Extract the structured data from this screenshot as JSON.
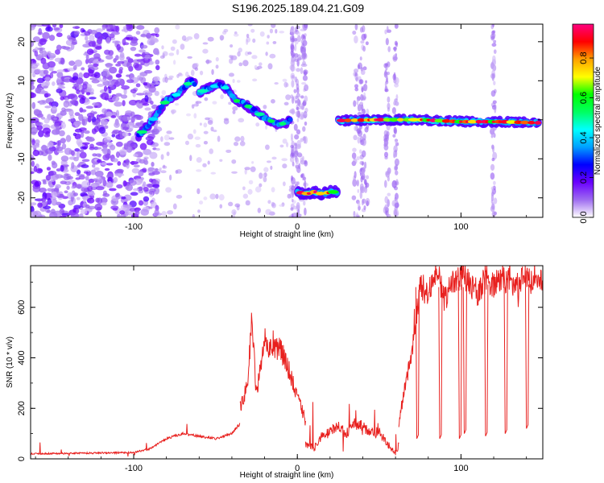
{
  "title": "S196.2025.189.04.21.G09",
  "chart_data": [
    {
      "type": "heatmap",
      "xlabel": "Height of straight line (km)",
      "ylabel": "Frequency (Hz)",
      "xlim": [
        -163,
        150
      ],
      "ylim": [
        -25,
        24.5
      ],
      "xticks": [
        -100,
        0,
        100
      ],
      "yticks": [
        -20,
        -10,
        0,
        10,
        20
      ],
      "colorbar": {
        "label": "Normalized spectral amplitude",
        "range": [
          0,
          0.97
        ],
        "ticks": [
          0.0,
          0.2,
          0.4,
          0.6,
          0.8
        ],
        "colors": [
          "#ffffff",
          "#9e6cf0",
          "#6a00ff",
          "#0000ff",
          "#00a0ff",
          "#00ffff",
          "#00ff60",
          "#00ff00",
          "#ffff00",
          "#ffa000",
          "#ff0000",
          "#ff0080"
        ]
      },
      "features": [
        {
          "name": "rising track",
          "points": [
            [
              -97,
              -4
            ],
            [
              -90,
              -1
            ],
            [
              -85,
              2
            ],
            [
              -80,
              5
            ],
            [
              -75,
              6
            ],
            [
              -70,
              8
            ],
            [
              -65,
              10
            ],
            [
              -62,
              9
            ]
          ]
        },
        {
          "name": "descending track",
          "points": [
            [
              -60,
              7
            ],
            [
              -55,
              8
            ],
            [
              -48,
              9
            ],
            [
              -43,
              8
            ],
            [
              -38,
              5
            ],
            [
              -32,
              4
            ],
            [
              -25,
              2
            ],
            [
              -18,
              0
            ],
            [
              -12,
              -1
            ],
            [
              -8,
              -1
            ],
            [
              -4,
              0
            ]
          ]
        },
        {
          "name": "offset segment",
          "points": [
            [
              0,
              -18.5
            ],
            [
              5,
              -19
            ],
            [
              10,
              -18.5
            ],
            [
              15,
              -19
            ],
            [
              20,
              -18.5
            ],
            [
              25,
              -18.5
            ]
          ]
        },
        {
          "name": "flat track",
          "points": [
            [
              25,
              -0.2
            ],
            [
              50,
              0
            ],
            [
              75,
              0
            ],
            [
              100,
              -0.5
            ],
            [
              125,
              -0.5
            ],
            [
              148,
              -0.8
            ]
          ]
        }
      ]
    },
    {
      "type": "line",
      "xlabel": "Height of straight line (km)",
      "ylabel": "SNR (10 * v/v)",
      "xlim": [
        -163,
        150
      ],
      "ylim": [
        0,
        765
      ],
      "xticks": [
        -100,
        0,
        100
      ],
      "yticks": [
        0,
        200,
        400,
        600
      ],
      "color": "#e8201e",
      "segments": [
        {
          "x": [
            -163,
            -100,
            -90,
            -80,
            -70,
            -60,
            -50,
            -40,
            -35
          ],
          "y": [
            20,
            25,
            40,
            80,
            100,
            90,
            80,
            100,
            140
          ]
        },
        {
          "x": [
            -35,
            -30,
            -28,
            -25,
            -20,
            -15,
            -10,
            -5,
            0,
            5
          ],
          "y": [
            200,
            300,
            580,
            250,
            470,
            420,
            440,
            350,
            250,
            150
          ]
        },
        {
          "x": [
            5,
            10,
            15,
            20,
            25,
            30,
            35,
            40,
            45,
            50,
            55,
            60,
            62
          ],
          "y": [
            60,
            40,
            90,
            110,
            130,
            100,
            140,
            130,
            100,
            110,
            60,
            20,
            60
          ]
        },
        {
          "x": [
            62,
            65,
            70,
            72,
            75,
            80,
            85,
            90,
            95,
            100,
            105,
            110,
            115,
            120,
            125,
            130,
            135,
            140,
            145,
            150
          ],
          "y": [
            140,
            260,
            420,
            520,
            680,
            650,
            750,
            630,
            700,
            720,
            700,
            630,
            720,
            690,
            720,
            700,
            700,
            720,
            690,
            700
          ]
        }
      ],
      "dips": [
        {
          "x": 73,
          "y": 80
        },
        {
          "x": 87,
          "y": 80
        },
        {
          "x": 99,
          "y": 80
        },
        {
          "x": 102,
          "y": 100
        },
        {
          "x": 115,
          "y": 90
        },
        {
          "x": 127,
          "y": 100
        },
        {
          "x": 140,
          "y": 120
        }
      ]
    }
  ]
}
